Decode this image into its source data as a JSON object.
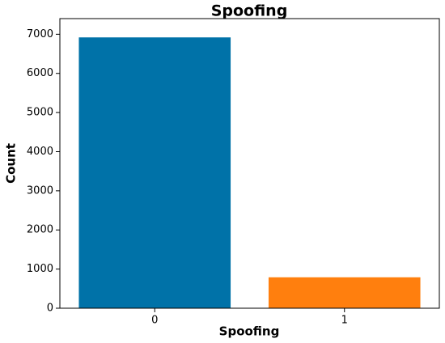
{
  "chart_data": {
    "type": "bar",
    "title": "Spoofing",
    "x_label": "Spoofing",
    "y_label": "Count",
    "categories": [
      "0",
      "1"
    ],
    "values": [
      6920,
      790
    ],
    "colors": [
      "#0072a8",
      "#ff7f0e"
    ],
    "ylim": [
      0,
      7400
    ],
    "yticks": [
      0,
      1000,
      2000,
      3000,
      4000,
      5000,
      6000,
      7000
    ]
  }
}
